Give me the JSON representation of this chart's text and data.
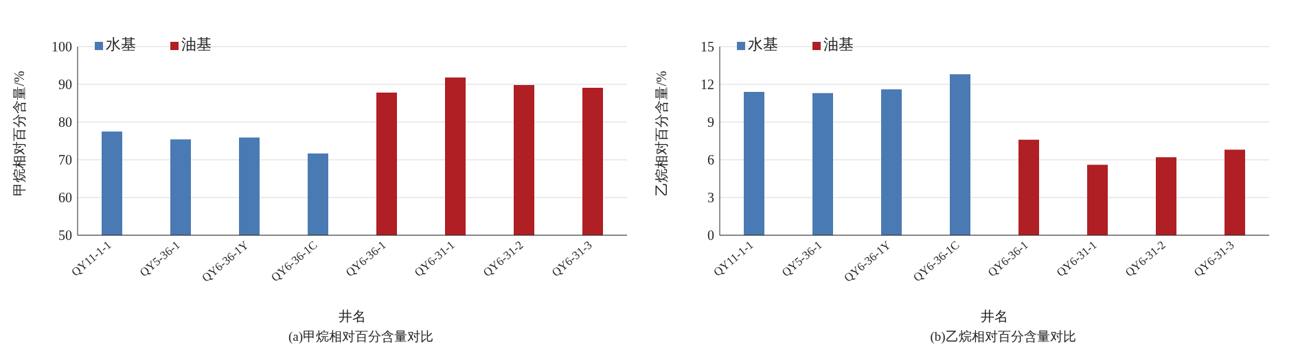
{
  "chart_data": [
    {
      "type": "bar",
      "title": "(a)甲烷相对百分含量对比",
      "xlabel": "井名",
      "ylabel": "甲烷相对百分含量/%",
      "categories": [
        "QY11-1-1",
        "QY5-36-1",
        "QY6-36-1Y",
        "QY6-36-1C",
        "QY6-36-1",
        "QY6-31-1",
        "QY6-31-2",
        "QY6-31-3"
      ],
      "stacked": true,
      "series": [
        {
          "name": "水基",
          "color": "#4a7ab3",
          "values": [
            77.5,
            75.4,
            75.9,
            71.7,
            null,
            null,
            null,
            null
          ]
        },
        {
          "name": "油基",
          "color": "#b01f24",
          "values": [
            null,
            null,
            null,
            null,
            87.8,
            91.8,
            89.8,
            89.1
          ]
        }
      ],
      "ylim": [
        50,
        100
      ],
      "yticks": [
        50,
        60,
        70,
        80,
        90,
        100
      ],
      "grid": "y",
      "legend": "top left"
    },
    {
      "type": "bar",
      "title": "(b)乙烷相对百分含量对比",
      "xlabel": "井名",
      "ylabel": "乙烷相对百分含量/%",
      "categories": [
        "QY11-1-1",
        "QY5-36-1",
        "QY6-36-1Y",
        "QY6-36-1C",
        "QY6-36-1",
        "QY6-31-1",
        "QY6-31-2",
        "QY6-31-3"
      ],
      "stacked": true,
      "series": [
        {
          "name": "水基",
          "color": "#4a7ab3",
          "values": [
            11.4,
            11.3,
            11.6,
            12.8,
            null,
            null,
            null,
            null
          ]
        },
        {
          "name": "油基",
          "color": "#b01f24",
          "values": [
            null,
            null,
            null,
            null,
            7.6,
            5.6,
            6.2,
            6.8
          ]
        }
      ],
      "ylim": [
        0,
        15
      ],
      "yticks": [
        0,
        3,
        6,
        9,
        12,
        15
      ],
      "grid": "y",
      "legend": "top left"
    }
  ]
}
